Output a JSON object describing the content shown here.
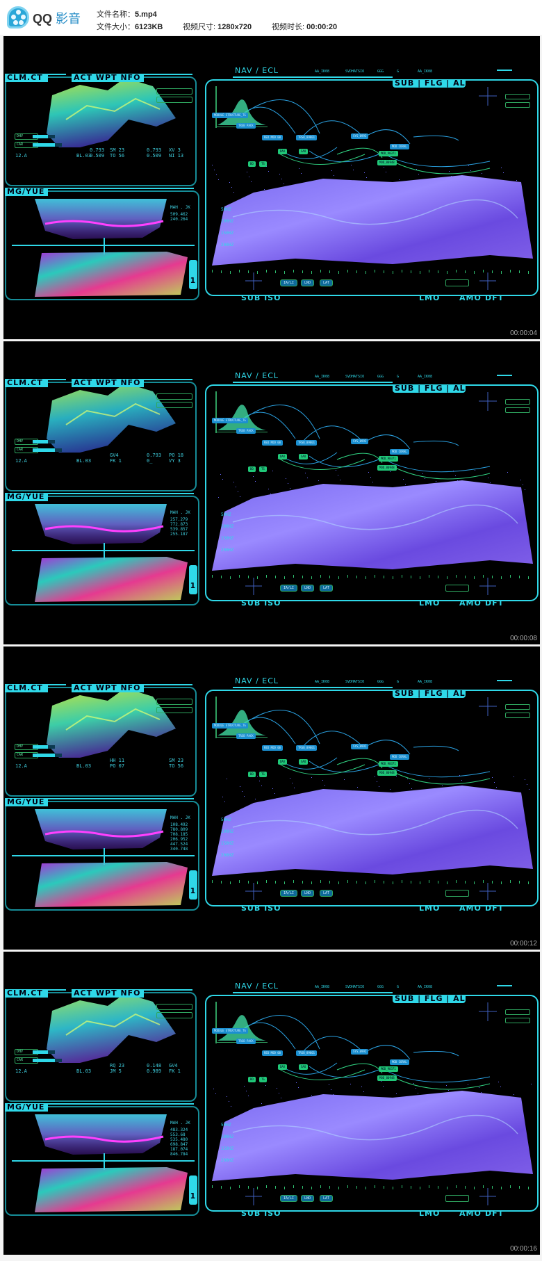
{
  "header": {
    "app_name_latin": "QQ",
    "app_name_cn": "影音",
    "file_name_label": "文件名称：",
    "file_name": "5.mp4",
    "file_size_label": "文件大小：",
    "file_size": "6123KB",
    "video_size_label": "视频尺寸: ",
    "video_size": "1280x720",
    "duration_label": "视频时长: ",
    "duration": "00:00:20"
  },
  "hud": {
    "clm_tab": "CLM.CT",
    "act_tab": "ACT WPT NFO",
    "mg_tab": "MG/YUE",
    "mah_label": "MAH . JK",
    "dhv_label": "DHV",
    "car_label": "CAR",
    "nav_title": "NAV / ECL",
    "top_labels": [
      "AA_IK08",
      "SVDHATSIO",
      "GGG",
      "G",
      "AA_IK08"
    ],
    "sub_tab": "SUB | FLG | AL",
    "freq_labels": [
      "50HZ",
      "100HZ",
      "150HZ",
      "200HZ"
    ],
    "nodes_blue": [
      "MODULE STRUCTURE_TG",
      "TRSB PACK",
      "RED MOD 00",
      "TRSB_89801",
      "SYS_0992",
      "MOD CORAL"
    ],
    "nodes_green": [
      "DAX",
      "SAO",
      "MOD_90371",
      "MOD_80948",
      "BO",
      "TS"
    ],
    "buttons": [
      "IA/LI",
      "LNO",
      "LAT"
    ],
    "page_indicator": "1",
    "bottom_left": "SUB ISO",
    "bottom_right": [
      "LMO",
      "AMO",
      "DFT"
    ],
    "accent_color": "#2fd8e8"
  },
  "frames": [
    {
      "timestamp": "00:00:04",
      "left_code": "12.A",
      "bl_code": "BL.03",
      "col_a": [
        "0.793",
        "0.509"
      ],
      "col_b": [
        "SM 23",
        "TO 56"
      ],
      "col_c": [
        "0.793",
        "0.509"
      ],
      "col_d": [
        "XV 3",
        "NI 13"
      ],
      "mg_values": [
        "509.462",
        "240.264"
      ]
    },
    {
      "timestamp": "00:00:08",
      "left_code": "12.A",
      "bl_code": "BL.03",
      "col_a": [
        "",
        ""
      ],
      "col_b": [
        "GV4",
        "FK 1"
      ],
      "col_c": [
        "0.793",
        "0_"
      ],
      "col_d": [
        "PO 18",
        "VY 3"
      ],
      "mg_values": [
        "257.279",
        "772.873",
        "539.857",
        "255.187"
      ]
    },
    {
      "timestamp": "00:00:12",
      "left_code": "12.A",
      "bl_code": "BL.03",
      "col_a": [
        "",
        ""
      ],
      "col_b": [
        "HH 11",
        "PO 07"
      ],
      "col_c": [
        "",
        ""
      ],
      "col_d": [
        "SM 23",
        "TO 56"
      ],
      "mg_values": [
        "108.492",
        "780.809",
        "708.185",
        "206.952",
        "447.524",
        "340.748"
      ]
    },
    {
      "timestamp": "00:00:16",
      "left_code": "12.A",
      "bl_code": "BL.03",
      "col_a": [
        "",
        ""
      ],
      "col_b": [
        "RQ 23",
        "JM 5"
      ],
      "col_c": [
        "0.148",
        "0.989"
      ],
      "col_d": [
        "GV4",
        "FK 1"
      ],
      "mg_values": [
        "483.324",
        "553.68",
        "535.480",
        "698.847",
        "187.074",
        "846.784"
      ]
    }
  ]
}
